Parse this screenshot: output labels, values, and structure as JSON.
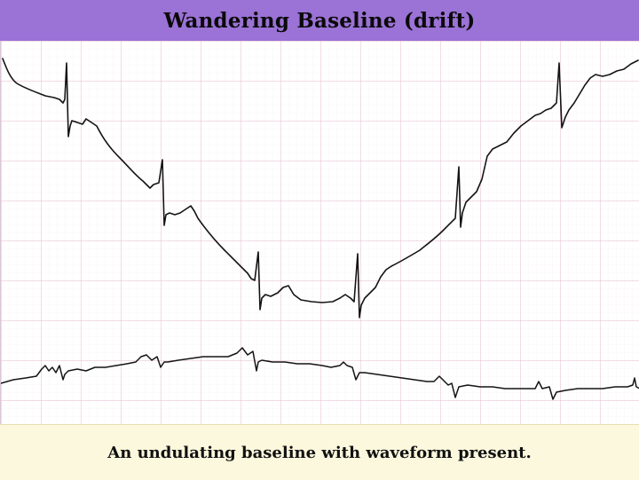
{
  "slide": {
    "title": "Wandering Baseline (drift)",
    "caption": "An undulating baseline with waveform present."
  },
  "colors": {
    "title_background": "#9b72d6",
    "grid_minor": "#f2dbe8",
    "grid_major": "#e3b5cc",
    "trace": "#141414",
    "caption_background": "#fcf8dd"
  }
}
